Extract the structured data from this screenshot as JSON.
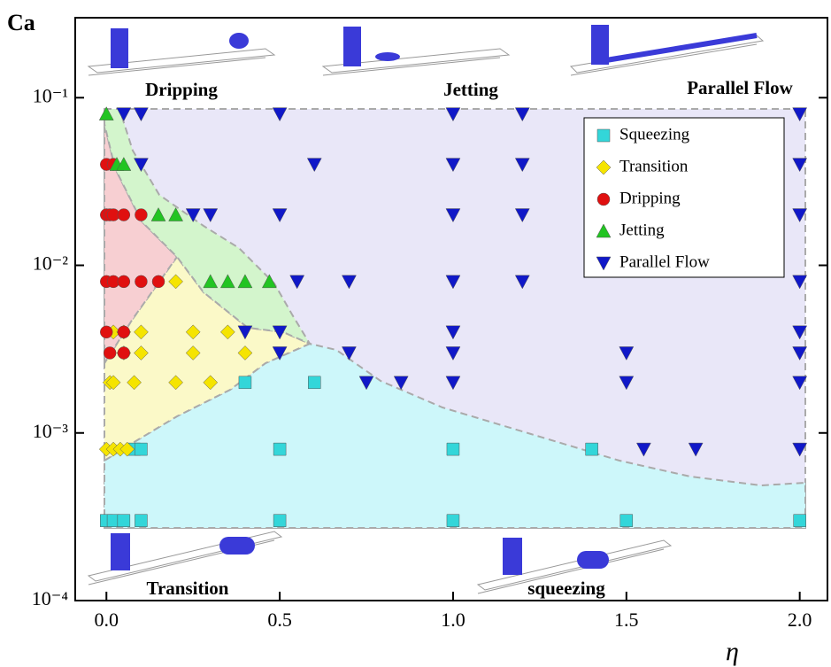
{
  "chart_data": {
    "type": "scatter",
    "ylabel": "Ca",
    "xlabel": "η",
    "xlim": [
      -0.09,
      2.08
    ],
    "ylim": [
      0.0001,
      0.3
    ],
    "ylog": true,
    "xticks": [
      {
        "value": 0,
        "label": "0.0"
      },
      0.5,
      {
        "value": 1,
        "label": "1.0"
      },
      1.5,
      {
        "value": 2,
        "label": "2.0"
      }
    ],
    "yticks": [
      {
        "value": 0.0001,
        "label": "10⁻⁴"
      },
      {
        "value": 0.001,
        "label": "10⁻³"
      },
      {
        "value": 0.01,
        "label": "10⁻²"
      },
      {
        "value": 0.1,
        "label": "10⁻¹"
      }
    ],
    "legend": "upper right",
    "annotations": [
      "Dripping",
      "Jetting",
      "Parallel Flow",
      "Transition",
      "squeezing"
    ],
    "series": [
      {
        "name": "Squeezing",
        "color": "#33d6d9",
        "marker": "square",
        "x": [
          0,
          0.02,
          0.05,
          0.1,
          0.5,
          1.0,
          1.5,
          2.0,
          0.08,
          0.1,
          0.5,
          1.0,
          1.4,
          0.4,
          0.6
        ],
        "values": [
          0.0003,
          0.0003,
          0.0003,
          0.0003,
          0.0003,
          0.0003,
          0.0003,
          0.0003,
          0.0008,
          0.0008,
          0.0008,
          0.0008,
          0.0008,
          0.002,
          0.002
        ]
      },
      {
        "name": "Transition",
        "color": "#f5e400",
        "marker": "diamond",
        "x": [
          0,
          0.02,
          0.04,
          0.06,
          0.01,
          0.02,
          0.08,
          0.2,
          0.3,
          0.05,
          0.1,
          0.25,
          0.4,
          0.02,
          0.05,
          0.1,
          0.25,
          0.35,
          0.2
        ],
        "values": [
          0.0008,
          0.0008,
          0.0008,
          0.0008,
          0.002,
          0.002,
          0.002,
          0.002,
          0.002,
          0.003,
          0.003,
          0.003,
          0.003,
          0.004,
          0.004,
          0.004,
          0.004,
          0.004,
          0.008
        ]
      },
      {
        "name": "Dripping",
        "color": "#e01010",
        "marker": "circle",
        "x": [
          0,
          0.02,
          0,
          0.01,
          0.02,
          0.05,
          0.1,
          0,
          0.02,
          0.05,
          0.1,
          0.15,
          0,
          0.05,
          0.01,
          0.05
        ],
        "values": [
          0.04,
          0.04,
          0.02,
          0.02,
          0.02,
          0.02,
          0.02,
          0.008,
          0.008,
          0.008,
          0.008,
          0.008,
          0.004,
          0.004,
          0.003,
          0.003
        ]
      },
      {
        "name": "Jetting",
        "color": "#22c422",
        "marker": "triangle-up",
        "x": [
          0,
          0.03,
          0.05,
          0.15,
          0.2,
          0.3,
          0.35,
          0.4,
          0.47
        ],
        "values": [
          0.08,
          0.04,
          0.04,
          0.02,
          0.02,
          0.008,
          0.008,
          0.008,
          0.008
        ]
      },
      {
        "name": "Parallel Flow",
        "color": "#1018c8",
        "marker": "triangle-down",
        "x": [
          0.05,
          0.1,
          0.5,
          1.0,
          1.2,
          2.0,
          0.1,
          0.6,
          1.0,
          1.2,
          2.0,
          0.25,
          0.3,
          0.5,
          1.0,
          1.2,
          2.0,
          0.55,
          0.7,
          1.0,
          1.2,
          2.0,
          0.4,
          0.5,
          1.0,
          2.0,
          0.5,
          0.7,
          1.0,
          1.5,
          2.0,
          0.75,
          0.85,
          1.0,
          1.5,
          2.0,
          1.55,
          1.7,
          2.0
        ],
        "values": [
          0.08,
          0.08,
          0.08,
          0.08,
          0.08,
          0.08,
          0.04,
          0.04,
          0.04,
          0.04,
          0.04,
          0.02,
          0.02,
          0.02,
          0.02,
          0.02,
          0.02,
          0.008,
          0.008,
          0.008,
          0.008,
          0.008,
          0.004,
          0.004,
          0.004,
          0.004,
          0.003,
          0.003,
          0.003,
          0.003,
          0.003,
          0.002,
          0.002,
          0.002,
          0.002,
          0.002,
          0.0008,
          0.0008,
          0.0008
        ]
      }
    ]
  }
}
